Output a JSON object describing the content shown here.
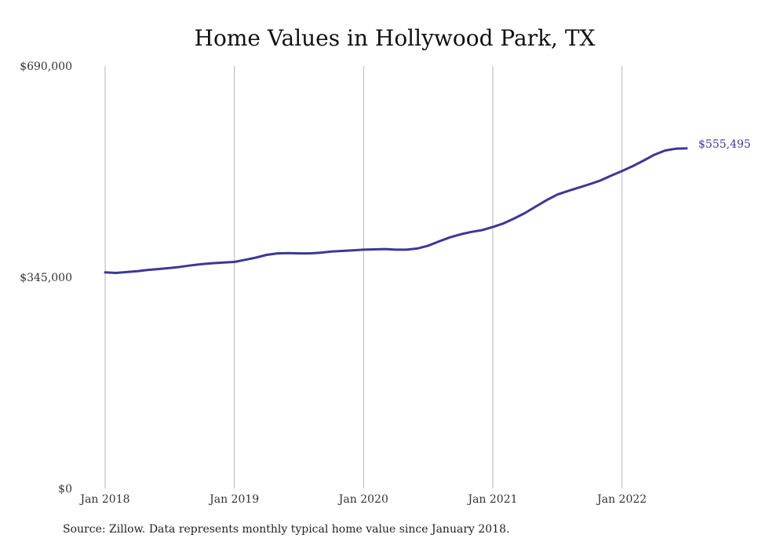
{
  "colors": {
    "line": "#3b3897",
    "grid": "#b5b5b5",
    "text": "#222222"
  },
  "chart_data": {
    "type": "line",
    "title": "Home Values in Hollywood Park, TX",
    "xlabel": "",
    "ylabel": "",
    "grid": "vertical lines at year ticks",
    "legend": "none",
    "ylim": [
      0,
      690000
    ],
    "yticks": [
      {
        "value": 0,
        "label": "$0"
      },
      {
        "value": 345000,
        "label": "$345,000"
      },
      {
        "value": 690000,
        "label": "$690,000"
      }
    ],
    "xticks": [
      {
        "value": "2018-01",
        "label": "Jan 2018"
      },
      {
        "value": "2019-01",
        "label": "Jan 2019"
      },
      {
        "value": "2020-01",
        "label": "Jan 2020"
      },
      {
        "value": "2021-01",
        "label": "Jan 2021"
      },
      {
        "value": "2022-01",
        "label": "Jan 2022"
      }
    ],
    "x": [
      "2018-01",
      "2018-02",
      "2018-03",
      "2018-04",
      "2018-05",
      "2018-06",
      "2018-07",
      "2018-08",
      "2018-09",
      "2018-10",
      "2018-11",
      "2018-12",
      "2019-01",
      "2019-02",
      "2019-03",
      "2019-04",
      "2019-05",
      "2019-06",
      "2019-07",
      "2019-08",
      "2019-09",
      "2019-10",
      "2019-11",
      "2019-12",
      "2020-01",
      "2020-02",
      "2020-03",
      "2020-04",
      "2020-05",
      "2020-06",
      "2020-07",
      "2020-08",
      "2020-09",
      "2020-10",
      "2020-11",
      "2020-12",
      "2021-01",
      "2021-02",
      "2021-03",
      "2021-04",
      "2021-05",
      "2021-06",
      "2021-07",
      "2021-08",
      "2021-09",
      "2021-10",
      "2021-11",
      "2021-12",
      "2022-01",
      "2022-02",
      "2022-03",
      "2022-04",
      "2022-05",
      "2022-06",
      "2022-07"
    ],
    "series": [
      {
        "values": [
          353000,
          352000,
          353500,
          355000,
          357000,
          358500,
          360000,
          362000,
          364500,
          366500,
          368000,
          369000,
          370000,
          373500,
          377000,
          381500,
          384000,
          384500,
          384000,
          384000,
          385000,
          387000,
          388000,
          389000,
          390000,
          390500,
          391000,
          390000,
          390000,
          392000,
          396500,
          403500,
          410000,
          415000,
          419000,
          422000,
          427000,
          433000,
          441000,
          450000,
          460500,
          471000,
          480000,
          486000,
          491500,
          497000,
          503000,
          511000,
          518500,
          526500,
          535500,
          545000,
          552000,
          555000,
          555495
        ]
      }
    ],
    "end_label": "$555,495"
  },
  "source_text": "Source: Zillow. Data represents monthly typical home value since January 2018."
}
